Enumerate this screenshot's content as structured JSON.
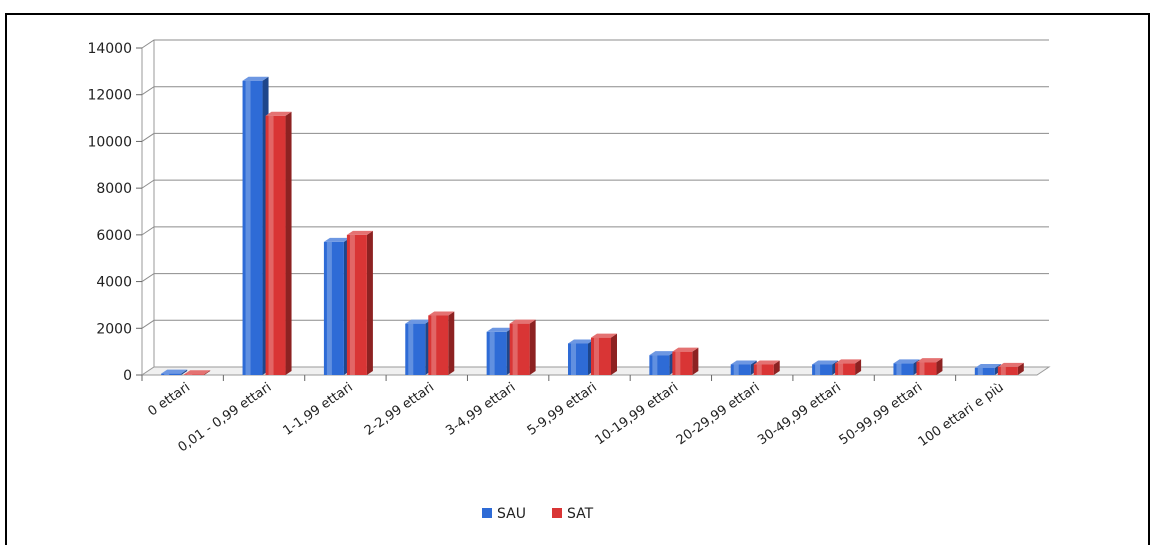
{
  "chart_data": {
    "type": "bar",
    "title": "",
    "xlabel": "",
    "ylabel": "",
    "ylim": [
      0,
      14000
    ],
    "yticks": [
      0,
      2000,
      4000,
      6000,
      8000,
      10000,
      12000,
      14000
    ],
    "categories": [
      "0 ettari",
      "0,01 - 0,99 ettari",
      "1-1,99 ettari",
      "2-2,99 ettari",
      "3-4,99 ettari",
      "5-9,99 ettari",
      "10-19,99 ettari",
      "20-29,99 ettari",
      "30-49,99 ettari",
      "50-99,99 ettari",
      "100 ettari e più"
    ],
    "series": [
      {
        "name": "SAU",
        "color": "#2e6bd6",
        "values": [
          60,
          12600,
          5700,
          2200,
          1850,
          1350,
          850,
          450,
          450,
          500,
          300
        ]
      },
      {
        "name": "SAT",
        "color": "#d93535",
        "values": [
          30,
          11100,
          6000,
          2550,
          2200,
          1600,
          1000,
          450,
          500,
          550,
          350
        ]
      }
    ],
    "grid": true,
    "legend": "bottom",
    "style": "3d-clustered-column"
  }
}
